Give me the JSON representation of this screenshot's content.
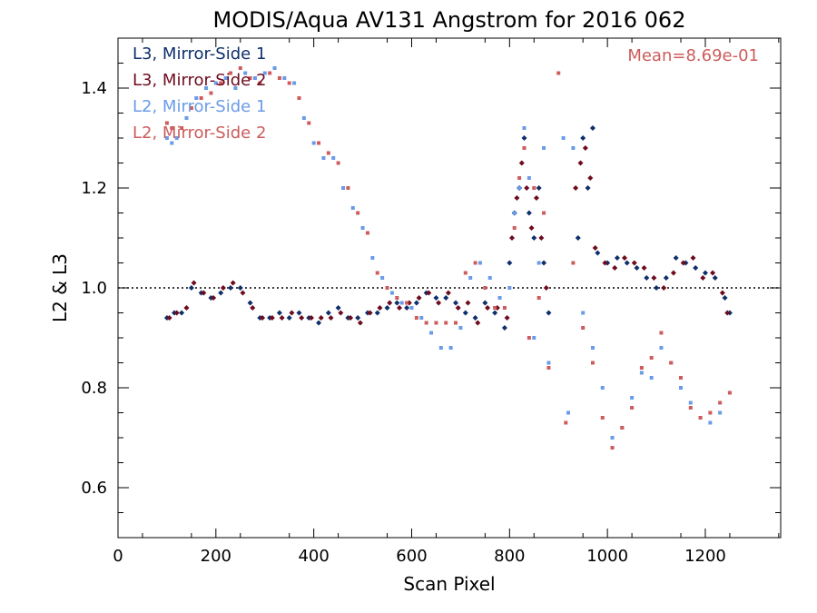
{
  "chart_data": {
    "type": "scatter",
    "title": "MODIS/Aqua AV131 Angstrom for 2016 062",
    "xlabel": "Scan Pixel",
    "ylabel": "L2 & L3",
    "xlim": [
      0,
      1354
    ],
    "ylim": [
      0.5,
      1.5
    ],
    "x_ticks": [
      0,
      200,
      400,
      600,
      800,
      1000,
      1200
    ],
    "x_tick_labels": [
      "0",
      "200",
      "400",
      "600",
      "800",
      "1000",
      "1200"
    ],
    "y_ticks": [
      0.6,
      0.8,
      1.0,
      1.2,
      1.4
    ],
    "y_tick_labels": [
      "0.6",
      "0.8",
      "1.0",
      "1.2",
      "1.4"
    ],
    "reference_line_y": 1.0,
    "annotation": "Mean=8.69e-01",
    "annotation_color": "#cd5c5c",
    "legend_position": "top-left",
    "series": [
      {
        "name": "L3, Mirror-Side 1",
        "color": "#0e2f6b",
        "marker": "diamond",
        "points": [
          [
            100,
            0.94
          ],
          [
            115,
            0.95
          ],
          [
            130,
            0.95
          ],
          [
            150,
            1.0
          ],
          [
            170,
            0.99
          ],
          [
            190,
            0.98
          ],
          [
            210,
            0.99
          ],
          [
            230,
            1.0
          ],
          [
            250,
            1.0
          ],
          [
            270,
            0.97
          ],
          [
            290,
            0.94
          ],
          [
            310,
            0.94
          ],
          [
            330,
            0.95
          ],
          [
            350,
            0.94
          ],
          [
            370,
            0.95
          ],
          [
            390,
            0.94
          ],
          [
            410,
            0.93
          ],
          [
            430,
            0.95
          ],
          [
            450,
            0.96
          ],
          [
            470,
            0.94
          ],
          [
            490,
            0.94
          ],
          [
            510,
            0.95
          ],
          [
            530,
            0.95
          ],
          [
            550,
            0.96
          ],
          [
            570,
            0.97
          ],
          [
            590,
            0.96
          ],
          [
            610,
            0.97
          ],
          [
            630,
            0.99
          ],
          [
            650,
            0.98
          ],
          [
            670,
            0.98
          ],
          [
            690,
            0.97
          ],
          [
            710,
            0.95
          ],
          [
            730,
            0.94
          ],
          [
            750,
            0.97
          ],
          [
            770,
            0.95
          ],
          [
            790,
            0.92
          ],
          [
            800,
            1.05
          ],
          [
            810,
            1.15
          ],
          [
            820,
            1.2
          ],
          [
            830,
            1.3
          ],
          [
            840,
            1.15
          ],
          [
            850,
            1.1
          ],
          [
            860,
            1.2
          ],
          [
            870,
            1.05
          ],
          [
            880,
            0.95
          ],
          [
            940,
            1.1
          ],
          [
            950,
            1.3
          ],
          [
            960,
            1.2
          ],
          [
            970,
            1.32
          ],
          [
            980,
            1.07
          ],
          [
            1000,
            1.05
          ],
          [
            1020,
            1.06
          ],
          [
            1040,
            1.05
          ],
          [
            1060,
            1.04
          ],
          [
            1080,
            1.02
          ],
          [
            1100,
            1.0
          ],
          [
            1120,
            1.02
          ],
          [
            1140,
            1.06
          ],
          [
            1160,
            1.05
          ],
          [
            1180,
            1.04
          ],
          [
            1200,
            1.03
          ],
          [
            1220,
            1.02
          ],
          [
            1240,
            0.98
          ],
          [
            1250,
            0.95
          ]
        ]
      },
      {
        "name": "L3, Mirror-Side 2",
        "color": "#6e0b1e",
        "marker": "diamond",
        "points": [
          [
            105,
            0.94
          ],
          [
            120,
            0.95
          ],
          [
            140,
            0.96
          ],
          [
            155,
            1.01
          ],
          [
            175,
            0.99
          ],
          [
            195,
            0.98
          ],
          [
            215,
            1.0
          ],
          [
            235,
            1.01
          ],
          [
            255,
            0.99
          ],
          [
            275,
            0.96
          ],
          [
            295,
            0.94
          ],
          [
            315,
            0.94
          ],
          [
            335,
            0.94
          ],
          [
            355,
            0.95
          ],
          [
            375,
            0.94
          ],
          [
            395,
            0.94
          ],
          [
            415,
            0.94
          ],
          [
            435,
            0.94
          ],
          [
            455,
            0.95
          ],
          [
            475,
            0.94
          ],
          [
            495,
            0.93
          ],
          [
            515,
            0.95
          ],
          [
            535,
            0.96
          ],
          [
            555,
            0.97
          ],
          [
            575,
            0.96
          ],
          [
            595,
            0.97
          ],
          [
            615,
            0.98
          ],
          [
            635,
            0.99
          ],
          [
            655,
            0.97
          ],
          [
            675,
            0.99
          ],
          [
            695,
            0.96
          ],
          [
            715,
            0.97
          ],
          [
            735,
            0.93
          ],
          [
            755,
            0.96
          ],
          [
            775,
            0.96
          ],
          [
            795,
            0.94
          ],
          [
            805,
            1.1
          ],
          [
            815,
            1.18
          ],
          [
            825,
            1.25
          ],
          [
            835,
            1.2
          ],
          [
            845,
            1.12
          ],
          [
            855,
            1.18
          ],
          [
            865,
            1.1
          ],
          [
            875,
            1.0
          ],
          [
            935,
            1.2
          ],
          [
            945,
            1.25
          ],
          [
            955,
            1.28
          ],
          [
            965,
            1.22
          ],
          [
            975,
            1.08
          ],
          [
            995,
            1.05
          ],
          [
            1015,
            1.04
          ],
          [
            1035,
            1.06
          ],
          [
            1055,
            1.05
          ],
          [
            1075,
            1.04
          ],
          [
            1095,
            1.02
          ],
          [
            1115,
            1.0
          ],
          [
            1135,
            1.03
          ],
          [
            1155,
            1.05
          ],
          [
            1175,
            1.06
          ],
          [
            1195,
            1.02
          ],
          [
            1215,
            1.03
          ],
          [
            1235,
            0.99
          ],
          [
            1245,
            0.95
          ]
        ]
      },
      {
        "name": "L2, Mirror-Side 1",
        "color": "#6a9be8",
        "marker": "square",
        "points": [
          [
            100,
            1.3
          ],
          [
            110,
            1.29
          ],
          [
            120,
            1.3
          ],
          [
            140,
            1.34
          ],
          [
            160,
            1.38
          ],
          [
            180,
            1.4
          ],
          [
            200,
            1.41
          ],
          [
            220,
            1.42
          ],
          [
            240,
            1.4
          ],
          [
            260,
            1.43
          ],
          [
            280,
            1.42
          ],
          [
            300,
            1.43
          ],
          [
            320,
            1.44
          ],
          [
            340,
            1.42
          ],
          [
            360,
            1.41
          ],
          [
            380,
            1.34
          ],
          [
            400,
            1.29
          ],
          [
            420,
            1.26
          ],
          [
            440,
            1.26
          ],
          [
            460,
            1.2
          ],
          [
            480,
            1.16
          ],
          [
            500,
            1.12
          ],
          [
            520,
            1.06
          ],
          [
            540,
            1.02
          ],
          [
            560,
            0.99
          ],
          [
            580,
            0.97
          ],
          [
            600,
            0.96
          ],
          [
            620,
            0.94
          ],
          [
            640,
            0.91
          ],
          [
            660,
            0.88
          ],
          [
            680,
            0.88
          ],
          [
            700,
            0.92
          ],
          [
            720,
            1.02
          ],
          [
            740,
            1.05
          ],
          [
            760,
            1.02
          ],
          [
            780,
            0.98
          ],
          [
            800,
            1.0
          ],
          [
            810,
            1.15
          ],
          [
            820,
            1.2
          ],
          [
            830,
            1.32
          ],
          [
            840,
            1.22
          ],
          [
            850,
            0.9
          ],
          [
            860,
            1.05
          ],
          [
            870,
            1.28
          ],
          [
            880,
            0.85
          ],
          [
            910,
            1.3
          ],
          [
            920,
            0.75
          ],
          [
            930,
            1.28
          ],
          [
            950,
            0.95
          ],
          [
            970,
            0.88
          ],
          [
            990,
            0.8
          ],
          [
            1010,
            0.7
          ],
          [
            1030,
            0.72
          ],
          [
            1050,
            0.78
          ],
          [
            1070,
            0.83
          ],
          [
            1090,
            0.82
          ],
          [
            1110,
            0.88
          ],
          [
            1130,
            0.85
          ],
          [
            1150,
            0.8
          ],
          [
            1170,
            0.77
          ],
          [
            1190,
            0.74
          ],
          [
            1210,
            0.73
          ],
          [
            1230,
            0.75
          ],
          [
            1250,
            0.79
          ]
        ]
      },
      {
        "name": "L2, Mirror-Side 2",
        "color": "#cd5c5c",
        "marker": "square",
        "points": [
          [
            100,
            1.33
          ],
          [
            110,
            1.32
          ],
          [
            130,
            1.32
          ],
          [
            150,
            1.36
          ],
          [
            170,
            1.38
          ],
          [
            190,
            1.39
          ],
          [
            210,
            1.41
          ],
          [
            230,
            1.43
          ],
          [
            250,
            1.44
          ],
          [
            270,
            1.42
          ],
          [
            290,
            1.41
          ],
          [
            310,
            1.43
          ],
          [
            330,
            1.42
          ],
          [
            350,
            1.41
          ],
          [
            370,
            1.38
          ],
          [
            390,
            1.33
          ],
          [
            410,
            1.29
          ],
          [
            430,
            1.27
          ],
          [
            450,
            1.25
          ],
          [
            470,
            1.2
          ],
          [
            490,
            1.15
          ],
          [
            510,
            1.11
          ],
          [
            530,
            1.03
          ],
          [
            550,
            1.0
          ],
          [
            570,
            0.98
          ],
          [
            590,
            0.97
          ],
          [
            610,
            0.94
          ],
          [
            630,
            0.93
          ],
          [
            650,
            0.93
          ],
          [
            670,
            0.93
          ],
          [
            690,
            0.93
          ],
          [
            710,
            1.03
          ],
          [
            730,
            1.05
          ],
          [
            750,
            1.0
          ],
          [
            770,
            0.96
          ],
          [
            790,
            0.96
          ],
          [
            810,
            1.12
          ],
          [
            820,
            1.22
          ],
          [
            830,
            1.28
          ],
          [
            840,
            0.9
          ],
          [
            850,
            1.2
          ],
          [
            860,
            0.98
          ],
          [
            870,
            1.15
          ],
          [
            880,
            0.84
          ],
          [
            900,
            1.43
          ],
          [
            915,
            0.73
          ],
          [
            930,
            1.05
          ],
          [
            950,
            0.92
          ],
          [
            970,
            0.85
          ],
          [
            990,
            0.74
          ],
          [
            1010,
            0.68
          ],
          [
            1030,
            0.72
          ],
          [
            1050,
            0.76
          ],
          [
            1070,
            0.84
          ],
          [
            1090,
            0.86
          ],
          [
            1110,
            0.91
          ],
          [
            1130,
            0.85
          ],
          [
            1150,
            0.82
          ],
          [
            1170,
            0.76
          ],
          [
            1190,
            0.74
          ],
          [
            1210,
            0.75
          ],
          [
            1230,
            0.77
          ],
          [
            1250,
            0.79
          ]
        ]
      }
    ]
  }
}
